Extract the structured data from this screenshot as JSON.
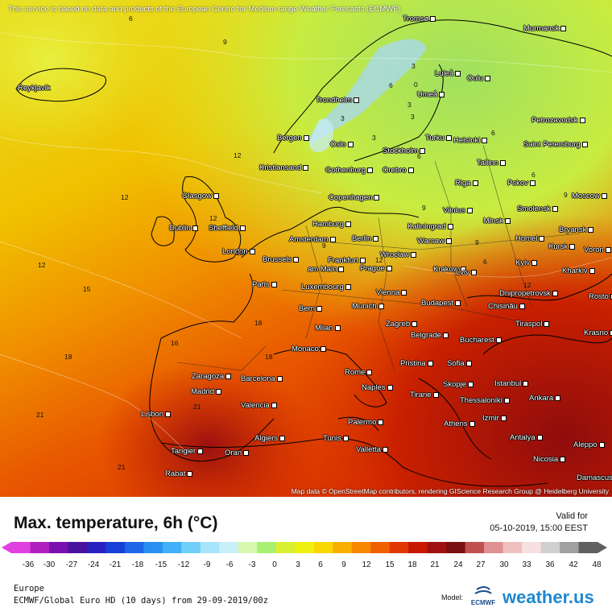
{
  "disclaimer": "This service is based on data and products of the European Centre for Medium-range Weather Forecasts (ECMWF)",
  "attribution": "Map data © OpenStreetMap contributors, rendering GIScience Research Group @ Heidelberg University",
  "title": "Max. temperature, 6h (°C)",
  "valid_label": "Valid for",
  "valid_time": "05-10-2019, 15:00 EEST",
  "region": "Europe",
  "model_run": "ECMWF/Global Euro HD (10 days) from 29-09-2019/00z",
  "model_label": "Model:",
  "ecmwf_label": "ECMWF",
  "brand": "weather.us",
  "scale": {
    "ticks": [
      "-36",
      "-30",
      "-27",
      "-24",
      "-21",
      "-18",
      "-15",
      "-12",
      "-9",
      "-6",
      "-3",
      "0",
      "3",
      "6",
      "9",
      "12",
      "15",
      "18",
      "21",
      "24",
      "27",
      "30",
      "33",
      "36",
      "42",
      "48"
    ],
    "colors": [
      "#e040e0",
      "#b020c0",
      "#7a10b0",
      "#4a10a0",
      "#2a20c0",
      "#1840d8",
      "#1c68e8",
      "#2890f0",
      "#40b0f8",
      "#70d0fa",
      "#a8e4fc",
      "#c8eef8",
      "#d8f8b0",
      "#a8f070",
      "#d8f030",
      "#f0f010",
      "#f8d800",
      "#f8b000",
      "#f88800",
      "#f06000",
      "#e03800",
      "#c81800",
      "#a01010",
      "#7a1010",
      "#c05050",
      "#e09090",
      "#f0c0c0",
      "#f8e0e0",
      "#d0d0d0",
      "#a0a0a0",
      "#606060"
    ]
  },
  "cities": [
    {
      "name": "Reykjavik"
    },
    {
      "name": "Tromsø"
    },
    {
      "name": "Murmansk"
    },
    {
      "name": "Luleå"
    },
    {
      "name": "Oulu"
    },
    {
      "name": "Umeå"
    },
    {
      "name": "Trondheim"
    },
    {
      "name": "Bergen"
    },
    {
      "name": "Oslo"
    },
    {
      "name": "Stockholm"
    },
    {
      "name": "Turku"
    },
    {
      "name": "Helsinki"
    },
    {
      "name": "Petrozavodsk"
    },
    {
      "name": "Saint Petersburg"
    },
    {
      "name": "Kristiansand"
    },
    {
      "name": "Gothenburg"
    },
    {
      "name": "Orebro"
    },
    {
      "name": "Tallinn"
    },
    {
      "name": "Riga"
    },
    {
      "name": "Pskov"
    },
    {
      "name": "Glasgow"
    },
    {
      "name": "Copenhagen"
    },
    {
      "name": "Moscow"
    },
    {
      "name": "Vilnius"
    },
    {
      "name": "Minsk"
    },
    {
      "name": "Smolensk"
    },
    {
      "name": "Dublin"
    },
    {
      "name": "Sheffield"
    },
    {
      "name": "Hamburg"
    },
    {
      "name": "Kaliningrad"
    },
    {
      "name": "Bryansk"
    },
    {
      "name": "Amsterdam"
    },
    {
      "name": "Berlin"
    },
    {
      "name": "Warsaw"
    },
    {
      "name": "Homel"
    },
    {
      "name": "Kursk"
    },
    {
      "name": "Voron"
    },
    {
      "name": "London"
    },
    {
      "name": "Brussels"
    },
    {
      "name": "Frankfurt"
    },
    {
      "name": "am Main"
    },
    {
      "name": "Wrocław"
    },
    {
      "name": "Kyiv"
    },
    {
      "name": "Kharkiv"
    },
    {
      "name": "Prague"
    },
    {
      "name": "Krakow"
    },
    {
      "name": "Lviv"
    },
    {
      "name": "Paris"
    },
    {
      "name": "Luxembourg"
    },
    {
      "name": "Vienna"
    },
    {
      "name": "Dnipropetrovsk"
    },
    {
      "name": "Rosto"
    },
    {
      "name": "Munich"
    },
    {
      "name": "Budapest"
    },
    {
      "name": "Chisinău"
    },
    {
      "name": "Bern"
    },
    {
      "name": "Zagreb"
    },
    {
      "name": "Tiraspol"
    },
    {
      "name": "Milan"
    },
    {
      "name": "Belgrade"
    },
    {
      "name": "Bucharest"
    },
    {
      "name": "Krasno"
    },
    {
      "name": "Monaco"
    },
    {
      "name": "Pristina"
    },
    {
      "name": "Sofia"
    },
    {
      "name": "Zaragoza"
    },
    {
      "name": "Barcelona"
    },
    {
      "name": "Rome"
    },
    {
      "name": "Istanbul"
    },
    {
      "name": "Madrid"
    },
    {
      "name": "Naples"
    },
    {
      "name": "Skopje"
    },
    {
      "name": "Tirane"
    },
    {
      "name": "Thessaloniki"
    },
    {
      "name": "Ankara"
    },
    {
      "name": "Valencia"
    },
    {
      "name": "Lisbon"
    },
    {
      "name": "Izmir"
    },
    {
      "name": "Athens"
    },
    {
      "name": "Palermo"
    },
    {
      "name": "Algiers"
    },
    {
      "name": "Tunis"
    },
    {
      "name": "Antalya"
    },
    {
      "name": "Aleppo"
    },
    {
      "name": "Tangier"
    },
    {
      "name": "Oran"
    },
    {
      "name": "Valletta"
    },
    {
      "name": "Nicosia"
    },
    {
      "name": "Rabat"
    },
    {
      "name": "Damascus"
    }
  ],
  "isotherms": [
    "6",
    "9",
    "3",
    "6",
    "3",
    "0",
    "3",
    "3",
    "3",
    "6",
    "9",
    "12",
    "12",
    "12",
    "15",
    "12",
    "15",
    "18",
    "16",
    "18",
    "18",
    "21",
    "21",
    "21",
    "6",
    "9",
    "9",
    "12",
    "6",
    "9",
    "6",
    "12"
  ]
}
